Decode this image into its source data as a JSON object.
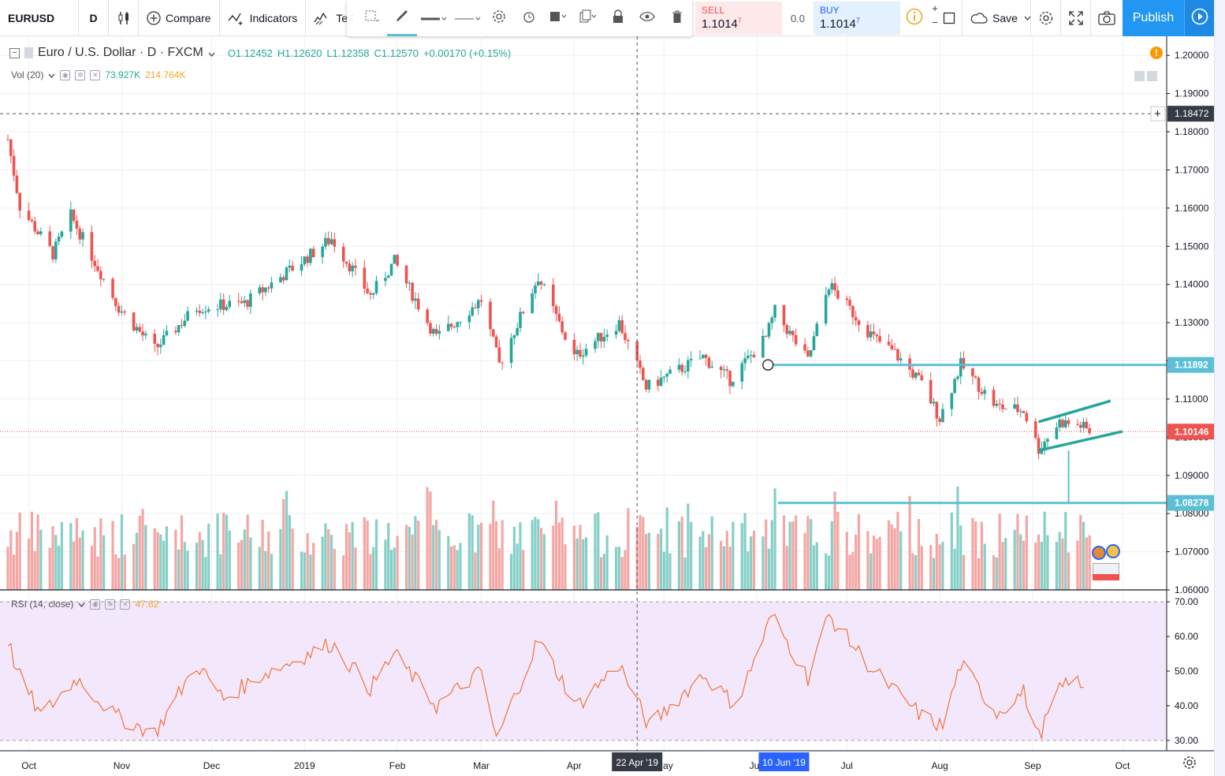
{
  "toolbar": {
    "symbol": "EURUSD",
    "interval": "D",
    "compare_label": "Compare",
    "indicators_label": "Indicators",
    "templates_label": "Te",
    "save_label": "Save",
    "publish_label": "Publish",
    "sell_label": "SELL",
    "sell_price": "1.1014",
    "sell_sup": "7",
    "buy_label": "BUY",
    "buy_price": "1.1014",
    "buy_sup": "7",
    "spread": "0.0"
  },
  "legend": {
    "title": "Euro / U.S. Dollar · D · FXCM",
    "open": "O1.12452",
    "high": "H1.12620",
    "low": "L1.12358",
    "close": "C1.12570",
    "change": "+0.00170 (+0.15%)",
    "vol_label": "Vol (20)",
    "vol_value_1": "73.927K",
    "vol_value_2": "214.764K",
    "rsi_label": "RSI (14, close)",
    "rsi_value": "47.62"
  },
  "colors": {
    "up": "#26a69a",
    "down": "#ef5350",
    "hline": "#5bc0d6",
    "rsi": "#f2733a",
    "accent": "#2196f3"
  },
  "chart_data": {
    "type": "candlestick",
    "symbol": "EURUSD",
    "ylim": [
      1.06,
      1.205
    ],
    "ticks": [
      1.06,
      1.07,
      1.08,
      1.09,
      1.1,
      1.11,
      1.12,
      1.13,
      1.14,
      1.15,
      1.16,
      1.17,
      1.18,
      1.19,
      1.2
    ],
    "tick_labels": [
      "1.06000",
      "1.07000",
      "1.08000",
      "1.09000",
      "1.10000",
      "1.11000",
      "1.12000",
      "1.13000",
      "1.14000",
      "1.15000",
      "1.16000",
      "1.17000",
      "1.18000",
      "1.19000",
      "1.20000"
    ],
    "x_labels": [
      "Oct",
      "Nov",
      "Dec",
      "2019",
      "Feb",
      "Mar",
      "Apr",
      "May",
      "Jun",
      "Jul",
      "Aug",
      "Sep",
      "Oct"
    ],
    "x_label_dates": [
      "2018-10-01",
      "2018-11-01",
      "2018-12-01",
      "2019-01-01",
      "2019-02-01",
      "2019-03-01",
      "2019-04-01",
      "2019-05-01",
      "2019-06-01",
      "2019-07-01",
      "2019-08-01",
      "2019-09-01",
      "2019-10-01"
    ],
    "date_range": [
      "2018-09-24",
      "2019-10-01"
    ],
    "close_path": [
      [
        "2018-09-24",
        1.178
      ],
      [
        "2018-09-28",
        1.1605
      ],
      [
        "2018-10-09",
        1.148
      ],
      [
        "2018-10-15",
        1.158
      ],
      [
        "2018-10-31",
        1.134
      ],
      [
        "2018-11-12",
        1.123
      ],
      [
        "2018-11-26",
        1.134
      ],
      [
        "2018-12-12",
        1.135
      ],
      [
        "2018-12-31",
        1.146
      ],
      [
        "2019-01-10",
        1.152
      ],
      [
        "2019-01-23",
        1.137
      ],
      [
        "2019-01-31",
        1.146
      ],
      [
        "2019-02-14",
        1.126
      ],
      [
        "2019-03-01",
        1.136
      ],
      [
        "2019-03-07",
        1.119
      ],
      [
        "2019-03-20",
        1.142
      ],
      [
        "2019-04-01",
        1.121
      ],
      [
        "2019-04-16",
        1.13
      ],
      [
        "2019-04-25",
        1.113
      ],
      [
        "2019-05-14",
        1.121
      ],
      [
        "2019-05-23",
        1.115
      ],
      [
        "2019-06-04",
        1.126
      ],
      [
        "2019-06-07",
        1.133
      ],
      [
        "2019-06-18",
        1.12
      ],
      [
        "2019-06-25",
        1.14
      ],
      [
        "2019-07-10",
        1.126
      ],
      [
        "2019-07-17",
        1.122
      ],
      [
        "2019-07-26",
        1.114
      ],
      [
        "2019-08-01",
        1.105
      ],
      [
        "2019-08-08",
        1.119
      ],
      [
        "2019-08-20",
        1.108
      ],
      [
        "2019-08-29",
        1.107
      ],
      [
        "2019-09-03",
        1.097
      ],
      [
        "2019-09-10",
        1.104
      ],
      [
        "2019-09-17",
        1.103
      ],
      [
        "2019-09-20",
        1.1015
      ]
    ],
    "rsi_path": [
      [
        "2018-09-24",
        59
      ],
      [
        "2018-09-27",
        50
      ],
      [
        "2018-10-05",
        37
      ],
      [
        "2018-10-17",
        48
      ],
      [
        "2018-10-30",
        37
      ],
      [
        "2018-11-12",
        32
      ],
      [
        "2018-11-26",
        52
      ],
      [
        "2018-12-05",
        42
      ],
      [
        "2018-12-18",
        49
      ],
      [
        "2018-12-31",
        54
      ],
      [
        "2019-01-10",
        58
      ],
      [
        "2019-01-23",
        45
      ],
      [
        "2019-01-31",
        55
      ],
      [
        "2019-02-14",
        40
      ],
      [
        "2019-03-01",
        50
      ],
      [
        "2019-03-06",
        30
      ],
      [
        "2019-03-20",
        59
      ],
      [
        "2019-04-02",
        40
      ],
      [
        "2019-04-16",
        52
      ],
      [
        "2019-04-26",
        34
      ],
      [
        "2019-05-14",
        49
      ],
      [
        "2019-05-25",
        40
      ],
      [
        "2019-06-06",
        66
      ],
      [
        "2019-06-18",
        48
      ],
      [
        "2019-06-25",
        66
      ],
      [
        "2019-07-10",
        50
      ],
      [
        "2019-07-26",
        37
      ],
      [
        "2019-08-02",
        34
      ],
      [
        "2019-08-08",
        52
      ],
      [
        "2019-08-20",
        38
      ],
      [
        "2019-08-29",
        44
      ],
      [
        "2019-09-03",
        31
      ],
      [
        "2019-09-09",
        43
      ],
      [
        "2019-09-14",
        49
      ],
      [
        "2019-09-18",
        44
      ]
    ],
    "horizontal_lines": [
      1.11892,
      1.08278
    ],
    "horizontal_line_labels": [
      "1.11892",
      "1.08278"
    ],
    "crosshair_price": "1.18472",
    "crosshair_price_value": 1.18472,
    "last_price": "1.10146",
    "last_price_value": 1.10146,
    "crosshair_date_label": "22 Apr '19",
    "crosshair_date": "2019-04-22",
    "marked_date_label": "10 Jun '19",
    "marked_date": "2019-06-10",
    "channel_upper": [
      [
        "2019-09-03",
        1.104
      ],
      [
        "2019-09-27",
        1.1095
      ]
    ],
    "channel_lower": [
      [
        "2019-09-03",
        1.0965
      ],
      [
        "2019-10-01",
        1.1015
      ]
    ],
    "measure_line": [
      [
        "2019-09-13",
        1.0965
      ],
      [
        "2019-09-13",
        1.0828
      ]
    ],
    "rsi": {
      "ylim": [
        27,
        73
      ],
      "ticks": [
        30,
        40,
        50,
        60,
        70
      ],
      "tick_labels": [
        "30.00",
        "40.00",
        "50.00",
        "60.00",
        "70.00"
      ],
      "band": [
        30,
        70
      ],
      "last": 47.62
    }
  }
}
